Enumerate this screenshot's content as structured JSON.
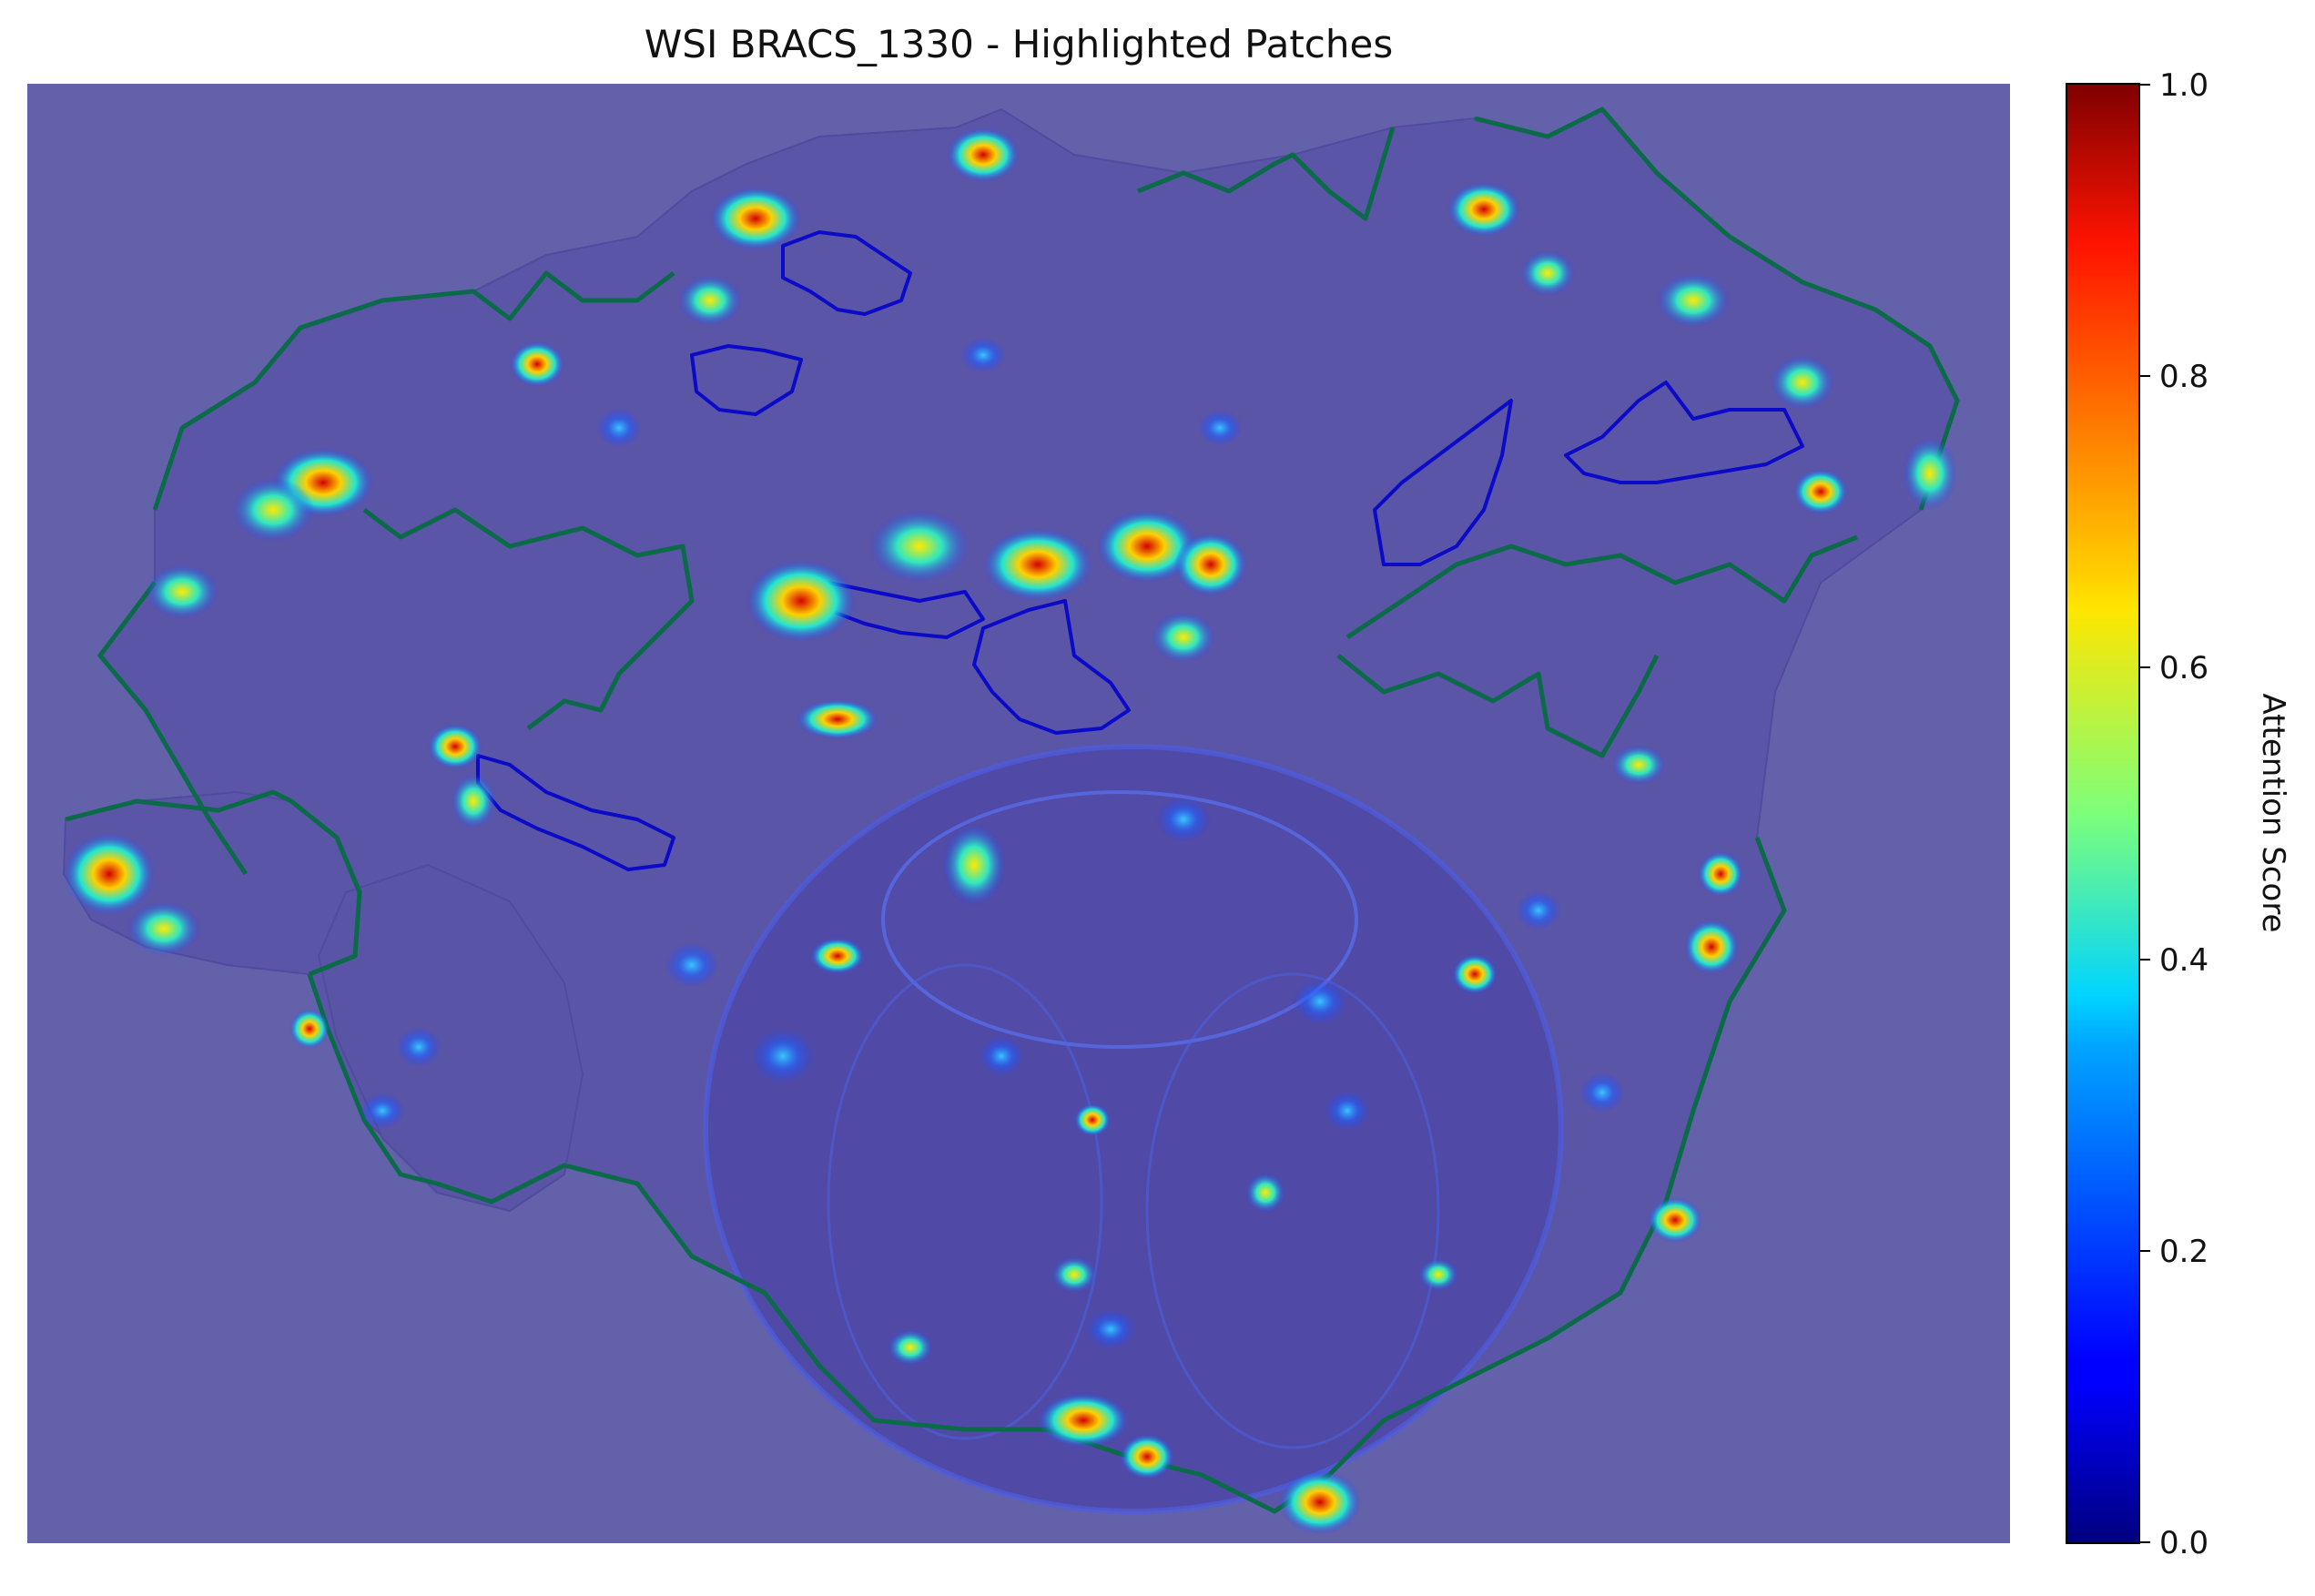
{
  "figure": {
    "title": "WSI BRACS_1330 - Highlighted Patches"
  },
  "colorbar": {
    "label": "Attention Score",
    "colormap": "jet",
    "range": [
      0.0,
      1.0
    ],
    "ticks": [
      "0.0",
      "0.2",
      "0.4",
      "0.6",
      "0.8",
      "1.0"
    ]
  },
  "colors": {
    "background_overlay": "#6461ab",
    "tissue": "#5b55a8",
    "green_contour": "#0b6b48",
    "blue_contour": "#0a0ac8"
  }
}
